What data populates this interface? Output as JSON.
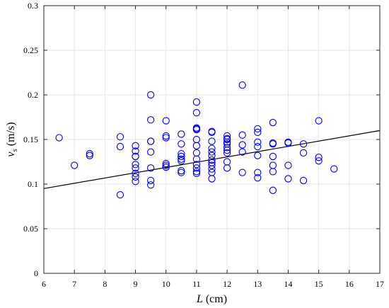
{
  "chart_data": {
    "type": "scatter",
    "xlabel": "L (cm)",
    "xlabel_var": "L",
    "xlabel_unit": " (cm)",
    "ylabel": "vs (m/s)",
    "ylabel_var": "v",
    "ylabel_sub": "s",
    "ylabel_unit": " (m/s)",
    "xlim": [
      6,
      17
    ],
    "ylim": [
      0,
      0.3
    ],
    "xticks": [
      6,
      7,
      8,
      9,
      10,
      11,
      12,
      13,
      14,
      15,
      16,
      17
    ],
    "yticks": [
      0,
      0.05,
      0.1,
      0.15,
      0.2,
      0.25,
      0.3
    ],
    "xtick_labels": [
      "6",
      "7",
      "8",
      "9",
      "10",
      "11",
      "12",
      "13",
      "14",
      "15",
      "16",
      "17"
    ],
    "ytick_labels": [
      "0",
      "0.05",
      "0.1",
      "0.15",
      "0.2",
      "0.25",
      "0.3"
    ],
    "grid": true,
    "marker_color": "#0000ff",
    "line_color": "#000000",
    "series": [
      {
        "type": "scatter",
        "marker": "circle-open",
        "x": [
          6.5,
          7,
          7.5,
          7.5,
          8.5,
          8.5,
          8.5,
          9,
          9,
          9,
          9,
          9,
          9,
          9,
          9,
          9,
          9.5,
          9.5,
          9.5,
          9.5,
          9.5,
          9.5,
          9.5,
          9.5,
          10,
          10,
          10,
          10,
          10,
          10,
          10.5,
          10.5,
          10.5,
          10.5,
          10.5,
          10.5,
          10.5,
          10.5,
          11,
          11,
          11,
          11,
          11,
          11,
          11,
          11,
          11,
          11,
          11,
          11,
          11,
          11.5,
          11.5,
          11.5,
          11.5,
          11.5,
          11.5,
          11.5,
          11.5,
          11.5,
          11.5,
          11.5,
          11.5,
          12,
          12,
          12,
          12,
          12,
          12,
          12,
          12,
          12,
          12,
          12.5,
          12.5,
          12.5,
          12.5,
          12.5,
          13,
          13,
          13,
          13,
          13,
          13,
          13,
          13.5,
          13.5,
          13.5,
          13.5,
          13.5,
          13.5,
          13.5,
          14,
          14,
          14,
          14,
          14.5,
          14.5,
          14.5,
          15,
          15,
          15,
          15.5
        ],
        "y": [
          0.152,
          0.121,
          0.132,
          0.134,
          0.153,
          0.142,
          0.088,
          0.143,
          0.137,
          0.131,
          0.122,
          0.118,
          0.112,
          0.108,
          0.103,
          0.131,
          0.2,
          0.172,
          0.148,
          0.136,
          0.118,
          0.104,
          0.099,
          0.148,
          0.171,
          0.154,
          0.152,
          0.123,
          0.121,
          0.119,
          0.156,
          0.134,
          0.131,
          0.128,
          0.126,
          0.115,
          0.113,
          0.145,
          0.192,
          0.18,
          0.163,
          0.161,
          0.15,
          0.143,
          0.135,
          0.128,
          0.122,
          0.118,
          0.114,
          0.112,
          0.162,
          0.159,
          0.148,
          0.14,
          0.136,
          0.132,
          0.127,
          0.124,
          0.121,
          0.117,
          0.113,
          0.106,
          0.158,
          0.154,
          0.151,
          0.147,
          0.145,
          0.141,
          0.138,
          0.135,
          0.125,
          0.118,
          0.15,
          0.211,
          0.155,
          0.144,
          0.136,
          0.113,
          0.162,
          0.158,
          0.147,
          0.142,
          0.132,
          0.113,
          0.107,
          0.169,
          0.146,
          0.145,
          0.131,
          0.121,
          0.114,
          0.093,
          0.147,
          0.121,
          0.106,
          0.146,
          0.145,
          0.135,
          0.104,
          0.171,
          0.13,
          0.126,
          0.117
        ]
      },
      {
        "type": "line",
        "x": [
          6,
          17
        ],
        "y": [
          0.095,
          0.16
        ]
      }
    ]
  }
}
